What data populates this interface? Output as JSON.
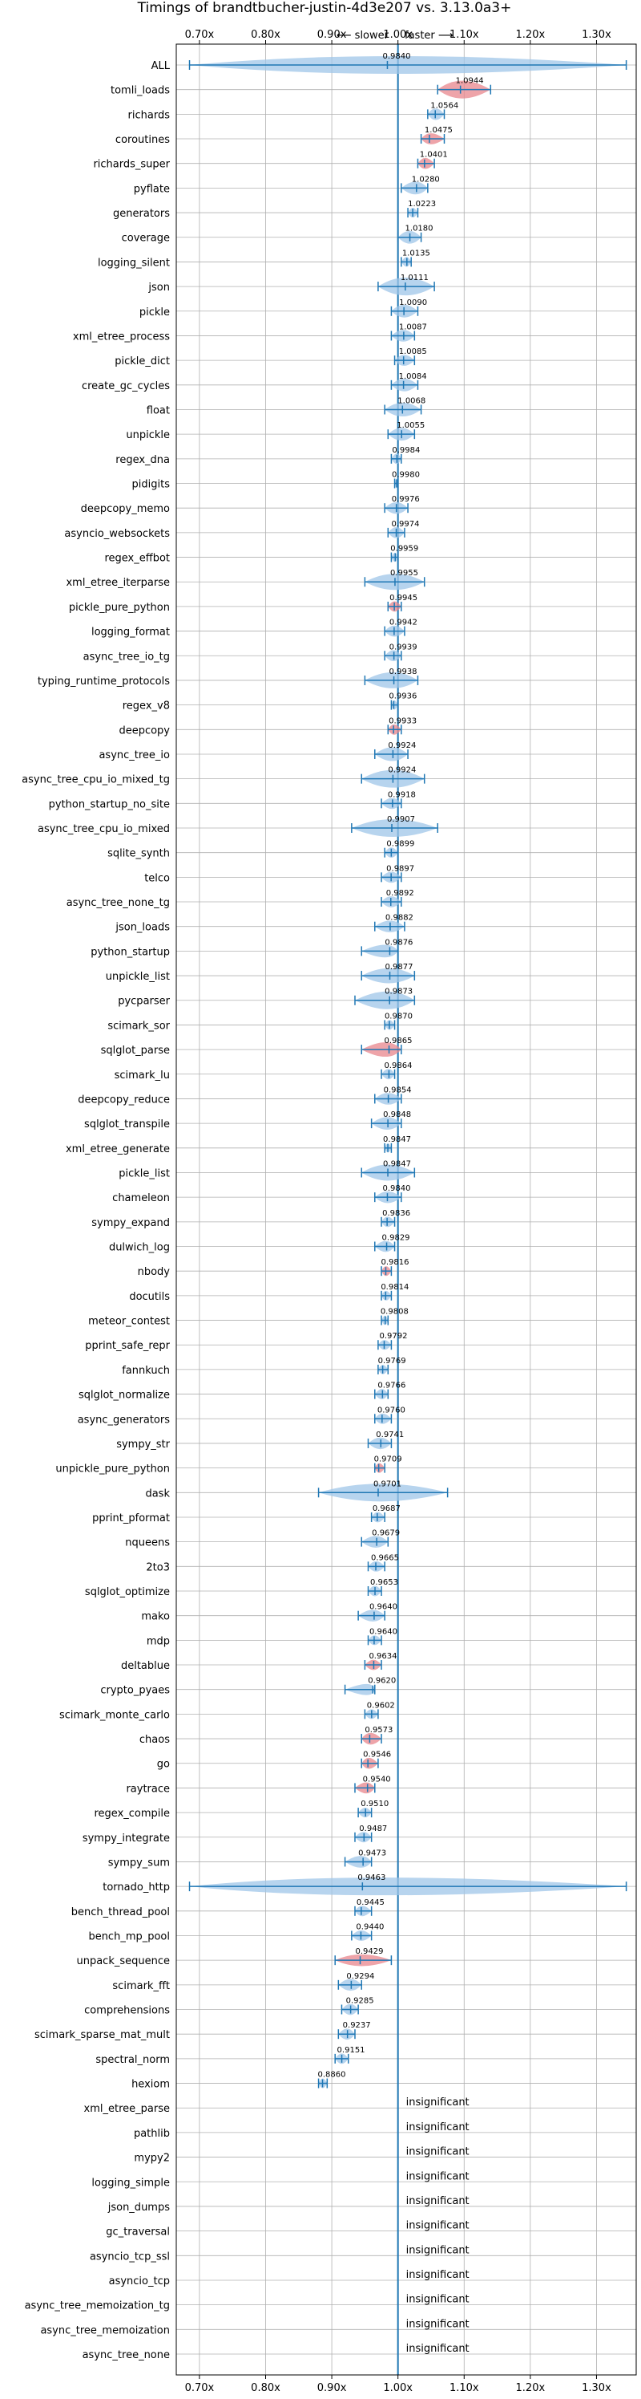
{
  "chart_data": {
    "type": "violin",
    "title": "Timings of brandtbucher-justin-4d3e207 vs. 3.13.0a3+",
    "direction_labels": {
      "slower": "⟵ slower",
      "faster": "faster ⟶"
    },
    "xlim": [
      0.665,
      1.36
    ],
    "x_ticks": [
      0.7,
      0.8,
      0.9,
      1.0,
      1.1,
      1.2,
      1.3
    ],
    "x_tick_labels": [
      "0.70x",
      "0.80x",
      "0.90x",
      "1.00x",
      "1.10x",
      "1.20x",
      "1.30x"
    ],
    "reference_line": 1.0,
    "grid": true,
    "colors": {
      "faster": "#e8868c",
      "slower": "#9fc5e8",
      "lines": "#1f77b4",
      "reference": "#1f77b4"
    },
    "insignificant_label": "insignificant",
    "benchmarks": [
      {
        "name": "ALL",
        "value": 0.984,
        "label": "0.9840",
        "lo": 0.685,
        "hi": 1.345,
        "spread": 0.03,
        "color": "slower"
      },
      {
        "name": "tomli_loads",
        "value": 1.0944,
        "label": "1.0944",
        "lo": 1.06,
        "hi": 1.14,
        "spread": 0.04,
        "color": "faster"
      },
      {
        "name": "richards",
        "value": 1.0564,
        "label": "1.0564",
        "lo": 1.045,
        "hi": 1.07,
        "spread": 0.012,
        "color": "slower"
      },
      {
        "name": "coroutines",
        "value": 1.0475,
        "label": "1.0475",
        "lo": 1.035,
        "hi": 1.07,
        "spread": 0.01,
        "color": "faster"
      },
      {
        "name": "richards_super",
        "value": 1.0401,
        "label": "1.0401",
        "lo": 1.03,
        "hi": 1.055,
        "spread": 0.01,
        "color": "faster"
      },
      {
        "name": "pyflate",
        "value": 1.028,
        "label": "1.0280",
        "lo": 1.005,
        "hi": 1.045,
        "spread": 0.015,
        "color": "slower"
      },
      {
        "name": "generators",
        "value": 1.0223,
        "label": "1.0223",
        "lo": 1.015,
        "hi": 1.03,
        "spread": 0.006,
        "color": "slower"
      },
      {
        "name": "coverage",
        "value": 1.018,
        "label": "1.0180",
        "lo": 1.0,
        "hi": 1.035,
        "spread": 0.015,
        "color": "slower"
      },
      {
        "name": "logging_silent",
        "value": 1.0135,
        "label": "1.0135",
        "lo": 1.005,
        "hi": 1.02,
        "spread": 0.006,
        "color": "slower"
      },
      {
        "name": "json",
        "value": 1.0111,
        "label": "1.0111",
        "lo": 0.97,
        "hi": 1.055,
        "spread": 0.03,
        "color": "slower"
      },
      {
        "name": "pickle",
        "value": 1.009,
        "label": "1.0090",
        "lo": 0.99,
        "hi": 1.03,
        "spread": 0.015,
        "color": "slower"
      },
      {
        "name": "xml_etree_process",
        "value": 1.0087,
        "label": "1.0087",
        "lo": 0.99,
        "hi": 1.025,
        "spread": 0.012,
        "color": "slower"
      },
      {
        "name": "pickle_dict",
        "value": 1.0085,
        "label": "1.0085",
        "lo": 0.995,
        "hi": 1.025,
        "spread": 0.01,
        "color": "slower"
      },
      {
        "name": "create_gc_cycles",
        "value": 1.0084,
        "label": "1.0084",
        "lo": 0.99,
        "hi": 1.03,
        "spread": 0.015,
        "color": "slower"
      },
      {
        "name": "float",
        "value": 1.0068,
        "label": "1.0068",
        "lo": 0.98,
        "hi": 1.035,
        "spread": 0.018,
        "color": "slower"
      },
      {
        "name": "unpickle",
        "value": 1.0055,
        "label": "1.0055",
        "lo": 0.985,
        "hi": 1.025,
        "spread": 0.015,
        "color": "slower"
      },
      {
        "name": "regex_dna",
        "value": 0.9984,
        "label": "0.9984",
        "lo": 0.99,
        "hi": 1.005,
        "spread": 0.008,
        "color": "slower"
      },
      {
        "name": "pidigits",
        "value": 0.998,
        "label": "0.9980",
        "lo": 0.995,
        "hi": 1.0,
        "spread": 0.005,
        "color": "slower"
      },
      {
        "name": "deepcopy_memo",
        "value": 0.9976,
        "label": "0.9976",
        "lo": 0.98,
        "hi": 1.015,
        "spread": 0.012,
        "color": "slower"
      },
      {
        "name": "asyncio_websockets",
        "value": 0.9974,
        "label": "0.9974",
        "lo": 0.985,
        "hi": 1.01,
        "spread": 0.01,
        "color": "slower"
      },
      {
        "name": "regex_effbot",
        "value": 0.9959,
        "label": "0.9959",
        "lo": 0.99,
        "hi": 1.0,
        "spread": 0.005,
        "color": "slower"
      },
      {
        "name": "xml_etree_iterparse",
        "value": 0.9955,
        "label": "0.9955",
        "lo": 0.95,
        "hi": 1.04,
        "spread": 0.025,
        "color": "slower"
      },
      {
        "name": "pickle_pure_python",
        "value": 0.9945,
        "label": "0.9945",
        "lo": 0.985,
        "hi": 1.005,
        "spread": 0.008,
        "color": "faster"
      },
      {
        "name": "logging_format",
        "value": 0.9942,
        "label": "0.9942",
        "lo": 0.98,
        "hi": 1.01,
        "spread": 0.01,
        "color": "slower"
      },
      {
        "name": "async_tree_io_tg",
        "value": 0.9939,
        "label": "0.9939",
        "lo": 0.98,
        "hi": 1.005,
        "spread": 0.01,
        "color": "slower"
      },
      {
        "name": "typing_runtime_protocols",
        "value": 0.9938,
        "label": "0.9938",
        "lo": 0.95,
        "hi": 1.03,
        "spread": 0.025,
        "color": "slower"
      },
      {
        "name": "regex_v8",
        "value": 0.9936,
        "label": "0.9936",
        "lo": 0.99,
        "hi": 1.0,
        "spread": 0.005,
        "color": "slower"
      },
      {
        "name": "deepcopy",
        "value": 0.9933,
        "label": "0.9933",
        "lo": 0.985,
        "hi": 1.005,
        "spread": 0.008,
        "color": "faster"
      },
      {
        "name": "async_tree_io",
        "value": 0.9924,
        "label": "0.9924",
        "lo": 0.965,
        "hi": 1.015,
        "spread": 0.018,
        "color": "slower"
      },
      {
        "name": "async_tree_cpu_io_mixed_tg",
        "value": 0.9924,
        "label": "0.9924",
        "lo": 0.945,
        "hi": 1.04,
        "spread": 0.03,
        "color": "slower"
      },
      {
        "name": "python_startup_no_site",
        "value": 0.9918,
        "label": "0.9918",
        "lo": 0.975,
        "hi": 1.005,
        "spread": 0.01,
        "color": "slower"
      },
      {
        "name": "async_tree_cpu_io_mixed",
        "value": 0.9907,
        "label": "0.9907",
        "lo": 0.93,
        "hi": 1.06,
        "spread": 0.035,
        "color": "slower"
      },
      {
        "name": "sqlite_synth",
        "value": 0.9899,
        "label": "0.9899",
        "lo": 0.98,
        "hi": 1.0,
        "spread": 0.008,
        "color": "slower"
      },
      {
        "name": "telco",
        "value": 0.9897,
        "label": "0.9897",
        "lo": 0.975,
        "hi": 1.005,
        "spread": 0.01,
        "color": "slower"
      },
      {
        "name": "async_tree_none_tg",
        "value": 0.9892,
        "label": "0.9892",
        "lo": 0.975,
        "hi": 1.005,
        "spread": 0.01,
        "color": "slower"
      },
      {
        "name": "json_loads",
        "value": 0.9882,
        "label": "0.9882",
        "lo": 0.965,
        "hi": 1.01,
        "spread": 0.012,
        "color": "slower"
      },
      {
        "name": "python_startup",
        "value": 0.9876,
        "label": "0.9876",
        "lo": 0.945,
        "hi": 1.0,
        "spread": 0.015,
        "color": "slower"
      },
      {
        "name": "unpickle_list",
        "value": 0.9877,
        "label": "0.9877",
        "lo": 0.945,
        "hi": 1.025,
        "spread": 0.022,
        "color": "slower"
      },
      {
        "name": "pycparser",
        "value": 0.9873,
        "label": "0.9873",
        "lo": 0.935,
        "hi": 1.025,
        "spread": 0.03,
        "color": "slower"
      },
      {
        "name": "scimark_sor",
        "value": 0.987,
        "label": "0.9870",
        "lo": 0.98,
        "hi": 0.995,
        "spread": 0.006,
        "color": "slower"
      },
      {
        "name": "sqlglot_parse",
        "value": 0.9865,
        "label": "0.9865",
        "lo": 0.945,
        "hi": 1.005,
        "spread": 0.02,
        "color": "faster"
      },
      {
        "name": "scimark_lu",
        "value": 0.9864,
        "label": "0.9864",
        "lo": 0.975,
        "hi": 0.995,
        "spread": 0.008,
        "color": "slower"
      },
      {
        "name": "deepcopy_reduce",
        "value": 0.9854,
        "label": "0.9854",
        "lo": 0.965,
        "hi": 1.005,
        "spread": 0.012,
        "color": "slower"
      },
      {
        "name": "sqlglot_transpile",
        "value": 0.9848,
        "label": "0.9848",
        "lo": 0.96,
        "hi": 1.005,
        "spread": 0.015,
        "color": "slower"
      },
      {
        "name": "xml_etree_generate",
        "value": 0.9847,
        "label": "0.9847",
        "lo": 0.98,
        "hi": 0.99,
        "spread": 0.005,
        "color": "slower"
      },
      {
        "name": "pickle_list",
        "value": 0.9847,
        "label": "0.9847",
        "lo": 0.945,
        "hi": 1.025,
        "spread": 0.025,
        "color": "slower"
      },
      {
        "name": "chameleon",
        "value": 0.984,
        "label": "0.9840",
        "lo": 0.965,
        "hi": 1.005,
        "spread": 0.012,
        "color": "slower"
      },
      {
        "name": "sympy_expand",
        "value": 0.9836,
        "label": "0.9836",
        "lo": 0.975,
        "hi": 0.995,
        "spread": 0.008,
        "color": "slower"
      },
      {
        "name": "dulwich_log",
        "value": 0.9829,
        "label": "0.9829",
        "lo": 0.965,
        "hi": 0.995,
        "spread": 0.01,
        "color": "slower"
      },
      {
        "name": "nbody",
        "value": 0.9816,
        "label": "0.9816",
        "lo": 0.975,
        "hi": 0.99,
        "spread": 0.006,
        "color": "faster"
      },
      {
        "name": "docutils",
        "value": 0.9814,
        "label": "0.9814",
        "lo": 0.975,
        "hi": 0.99,
        "spread": 0.006,
        "color": "slower"
      },
      {
        "name": "meteor_contest",
        "value": 0.9808,
        "label": "0.9808",
        "lo": 0.975,
        "hi": 0.985,
        "spread": 0.005,
        "color": "slower"
      },
      {
        "name": "pprint_safe_repr",
        "value": 0.9792,
        "label": "0.9792",
        "lo": 0.97,
        "hi": 0.99,
        "spread": 0.006,
        "color": "slower"
      },
      {
        "name": "fannkuch",
        "value": 0.9769,
        "label": "0.9769",
        "lo": 0.97,
        "hi": 0.985,
        "spread": 0.005,
        "color": "slower"
      },
      {
        "name": "sqlglot_normalize",
        "value": 0.9766,
        "label": "0.9766",
        "lo": 0.965,
        "hi": 0.985,
        "spread": 0.008,
        "color": "slower"
      },
      {
        "name": "async_generators",
        "value": 0.976,
        "label": "0.9760",
        "lo": 0.965,
        "hi": 0.99,
        "spread": 0.008,
        "color": "slower"
      },
      {
        "name": "sympy_str",
        "value": 0.9741,
        "label": "0.9741",
        "lo": 0.955,
        "hi": 0.99,
        "spread": 0.012,
        "color": "slower"
      },
      {
        "name": "unpickle_pure_python",
        "value": 0.9709,
        "label": "0.9709",
        "lo": 0.965,
        "hi": 0.98,
        "spread": 0.006,
        "color": "faster"
      },
      {
        "name": "dask",
        "value": 0.9701,
        "label": "0.9701",
        "lo": 0.88,
        "hi": 1.075,
        "spread": 0.045,
        "color": "slower"
      },
      {
        "name": "pprint_pformat",
        "value": 0.9687,
        "label": "0.9687",
        "lo": 0.96,
        "hi": 0.98,
        "spread": 0.008,
        "color": "slower"
      },
      {
        "name": "nqueens",
        "value": 0.9679,
        "label": "0.9679",
        "lo": 0.945,
        "hi": 0.985,
        "spread": 0.012,
        "color": "slower"
      },
      {
        "name": "2to3",
        "value": 0.9665,
        "label": "0.9665",
        "lo": 0.955,
        "hi": 0.98,
        "spread": 0.008,
        "color": "slower"
      },
      {
        "name": "sqlglot_optimize",
        "value": 0.9653,
        "label": "0.9653",
        "lo": 0.955,
        "hi": 0.975,
        "spread": 0.008,
        "color": "slower"
      },
      {
        "name": "mako",
        "value": 0.964,
        "label": "0.9640",
        "lo": 0.94,
        "hi": 0.98,
        "spread": 0.012,
        "color": "slower"
      },
      {
        "name": "mdp",
        "value": 0.964,
        "label": "0.9640",
        "lo": 0.955,
        "hi": 0.975,
        "spread": 0.006,
        "color": "slower"
      },
      {
        "name": "deltablue",
        "value": 0.9634,
        "label": "0.9634",
        "lo": 0.95,
        "hi": 0.975,
        "spread": 0.008,
        "color": "faster"
      },
      {
        "name": "crypto_pyaes",
        "value": 0.962,
        "label": "0.9620",
        "lo": 0.92,
        "hi": 0.965,
        "spread": 0.01,
        "color": "slower"
      },
      {
        "name": "scimark_monte_carlo",
        "value": 0.9602,
        "label": "0.9602",
        "lo": 0.95,
        "hi": 0.97,
        "spread": 0.006,
        "color": "slower"
      },
      {
        "name": "chaos",
        "value": 0.9573,
        "label": "0.9573",
        "lo": 0.945,
        "hi": 0.975,
        "spread": 0.012,
        "color": "faster"
      },
      {
        "name": "go",
        "value": 0.9546,
        "label": "0.9546",
        "lo": 0.945,
        "hi": 0.97,
        "spread": 0.01,
        "color": "faster"
      },
      {
        "name": "raytrace",
        "value": 0.954,
        "label": "0.9540",
        "lo": 0.935,
        "hi": 0.965,
        "spread": 0.01,
        "color": "faster"
      },
      {
        "name": "regex_compile",
        "value": 0.951,
        "label": "0.9510",
        "lo": 0.94,
        "hi": 0.96,
        "spread": 0.006,
        "color": "slower"
      },
      {
        "name": "sympy_integrate",
        "value": 0.9487,
        "label": "0.9487",
        "lo": 0.935,
        "hi": 0.96,
        "spread": 0.008,
        "color": "slower"
      },
      {
        "name": "sympy_sum",
        "value": 0.9473,
        "label": "0.9473",
        "lo": 0.92,
        "hi": 0.96,
        "spread": 0.012,
        "color": "slower"
      },
      {
        "name": "tornado_http",
        "value": 0.9463,
        "label": "0.9463",
        "lo": 0.685,
        "hi": 1.345,
        "spread": 0.04,
        "color": "slower"
      },
      {
        "name": "bench_thread_pool",
        "value": 0.9445,
        "label": "0.9445",
        "lo": 0.935,
        "hi": 0.96,
        "spread": 0.008,
        "color": "slower"
      },
      {
        "name": "bench_mp_pool",
        "value": 0.944,
        "label": "0.9440",
        "lo": 0.93,
        "hi": 0.96,
        "spread": 0.008,
        "color": "slower"
      },
      {
        "name": "unpack_sequence",
        "value": 0.9429,
        "label": "0.9429",
        "lo": 0.905,
        "hi": 0.99,
        "spread": 0.012,
        "color": "faster"
      },
      {
        "name": "scimark_fft",
        "value": 0.9294,
        "label": "0.9294",
        "lo": 0.91,
        "hi": 0.945,
        "spread": 0.012,
        "color": "slower"
      },
      {
        "name": "comprehensions",
        "value": 0.9285,
        "label": "0.9285",
        "lo": 0.915,
        "hi": 0.94,
        "spread": 0.01,
        "color": "slower"
      },
      {
        "name": "scimark_sparse_mat_mult",
        "value": 0.9237,
        "label": "0.9237",
        "lo": 0.91,
        "hi": 0.935,
        "spread": 0.01,
        "color": "slower"
      },
      {
        "name": "spectral_norm",
        "value": 0.9151,
        "label": "0.9151",
        "lo": 0.905,
        "hi": 0.925,
        "spread": 0.008,
        "color": "slower"
      },
      {
        "name": "hexiom",
        "value": 0.886,
        "label": "0.8860",
        "lo": 0.88,
        "hi": 0.893,
        "spread": 0.006,
        "color": "slower"
      },
      {
        "name": "xml_etree_parse",
        "insignificant": true
      },
      {
        "name": "pathlib",
        "insignificant": true
      },
      {
        "name": "mypy2",
        "insignificant": true
      },
      {
        "name": "logging_simple",
        "insignificant": true
      },
      {
        "name": "json_dumps",
        "insignificant": true
      },
      {
        "name": "gc_traversal",
        "insignificant": true
      },
      {
        "name": "asyncio_tcp_ssl",
        "insignificant": true
      },
      {
        "name": "asyncio_tcp",
        "insignificant": true
      },
      {
        "name": "async_tree_memoization_tg",
        "insignificant": true
      },
      {
        "name": "async_tree_memoization",
        "insignificant": true
      },
      {
        "name": "async_tree_none",
        "insignificant": true
      }
    ]
  }
}
